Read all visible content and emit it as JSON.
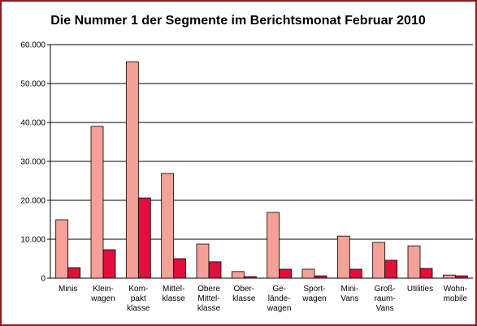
{
  "chart_data": {
    "type": "bar",
    "title": "Die Nummer 1 der Segmente im Berichtsmonat Februar 2010",
    "categories": [
      "Minis",
      "Klein-\nwagen",
      "Kom-\npakt\nklasse",
      "Mittel-\nklasse",
      "Obere\nMittel-\nklasse",
      "Ober-\nklasse",
      "Ge-\nlände-\nwagen",
      "Sport-\nwagen",
      "Mini-\nVans",
      "Groß-\nraum-\nVans",
      "Utilities",
      "Wohn-\nmobile"
    ],
    "series": [
      {
        "color": "#f4a198",
        "values": [
          15000,
          39000,
          55600,
          26900,
          8750,
          1700,
          16900,
          2300,
          10800,
          9200,
          8300,
          800
        ]
      },
      {
        "color": "#e0103c",
        "values": [
          2700,
          7300,
          20600,
          5000,
          4200,
          400,
          2300,
          600,
          2300,
          4600,
          2500,
          600
        ]
      }
    ],
    "ylim": [
      0,
      60000
    ],
    "yticks": [
      0,
      {
        "value": 10000,
        "label": "10.000"
      },
      {
        "value": 20000,
        "label": "20.000"
      },
      {
        "value": 30000,
        "label": "30.000"
      },
      {
        "value": 40000,
        "label": "40.000"
      },
      {
        "value": 50000,
        "label": "50.000"
      },
      {
        "value": 60000,
        "label": "60.000"
      }
    ],
    "grid": true
  }
}
